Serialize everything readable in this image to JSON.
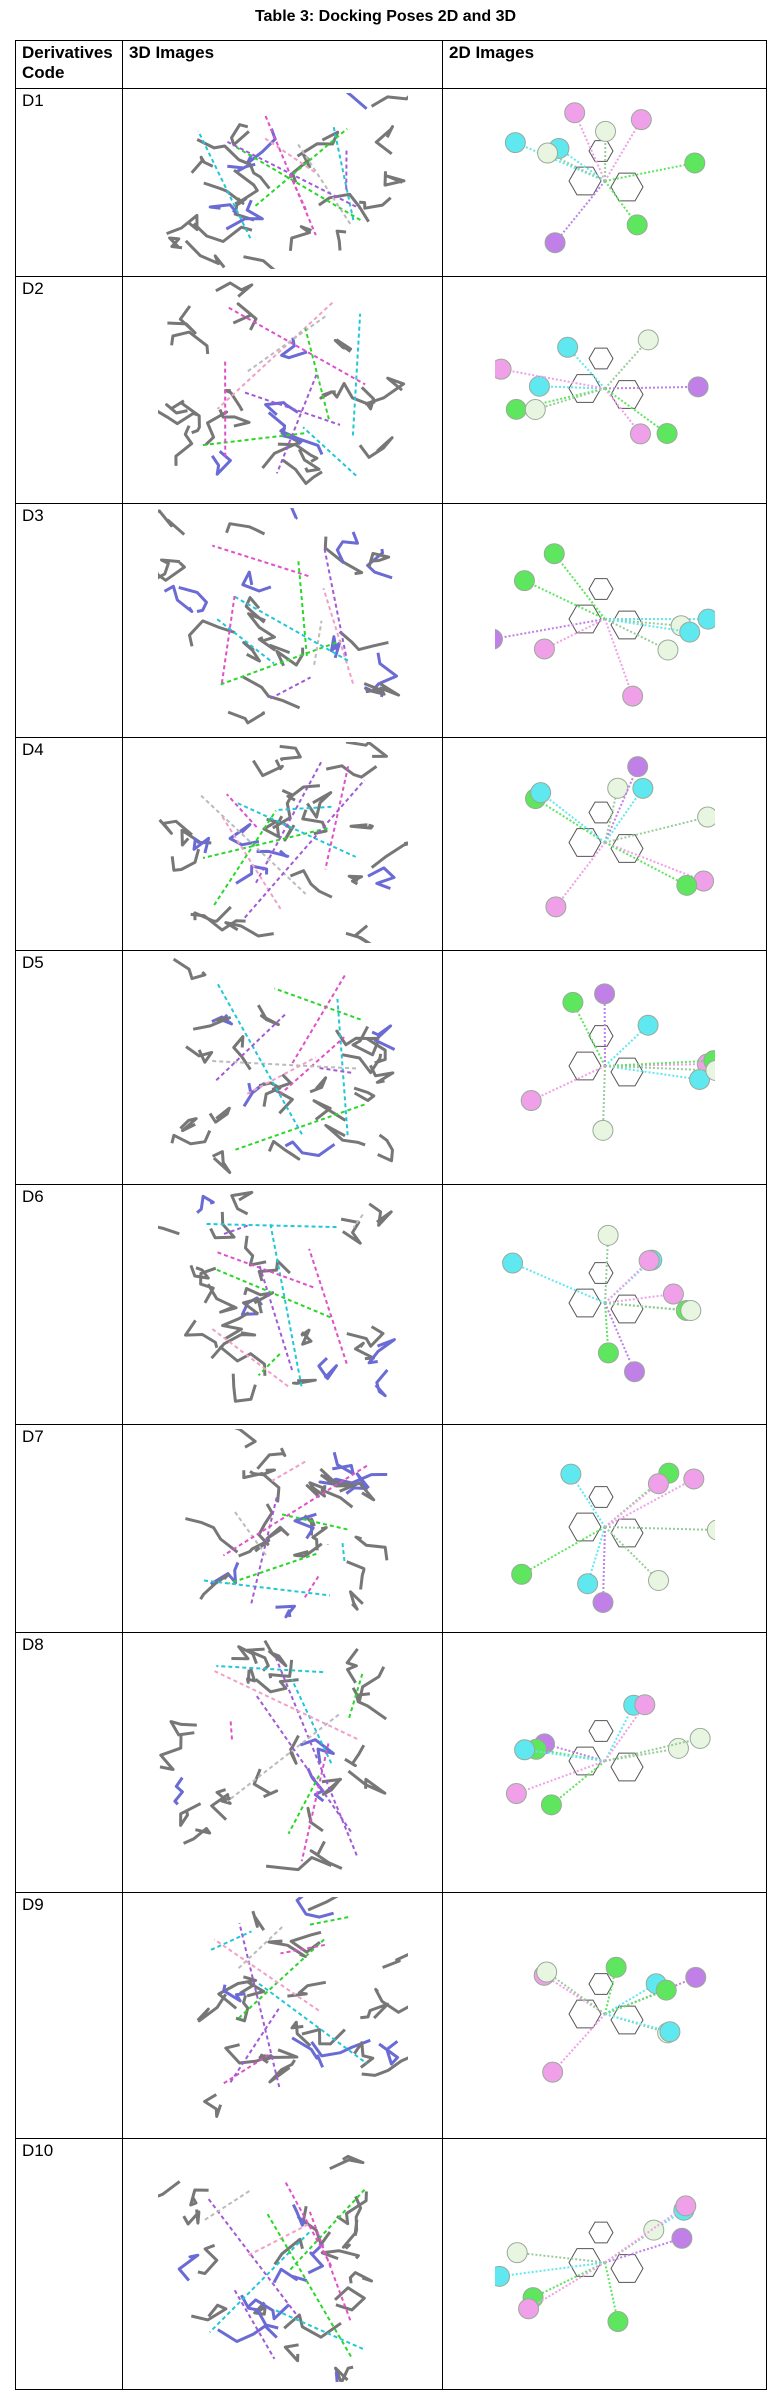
{
  "title": "Table 3: Docking Poses 2D and 3D",
  "table": {
    "header": [
      "Derivatives Code",
      "3D Images",
      "2D Images"
    ],
    "rows": [
      [
        "D1"
      ],
      [
        "D2"
      ],
      [
        "D3"
      ],
      [
        "D4"
      ],
      [
        "D5"
      ],
      [
        "D6"
      ],
      [
        "D7"
      ],
      [
        "D8"
      ],
      [
        "D9"
      ],
      [
        "D10"
      ]
    ]
  }
}
